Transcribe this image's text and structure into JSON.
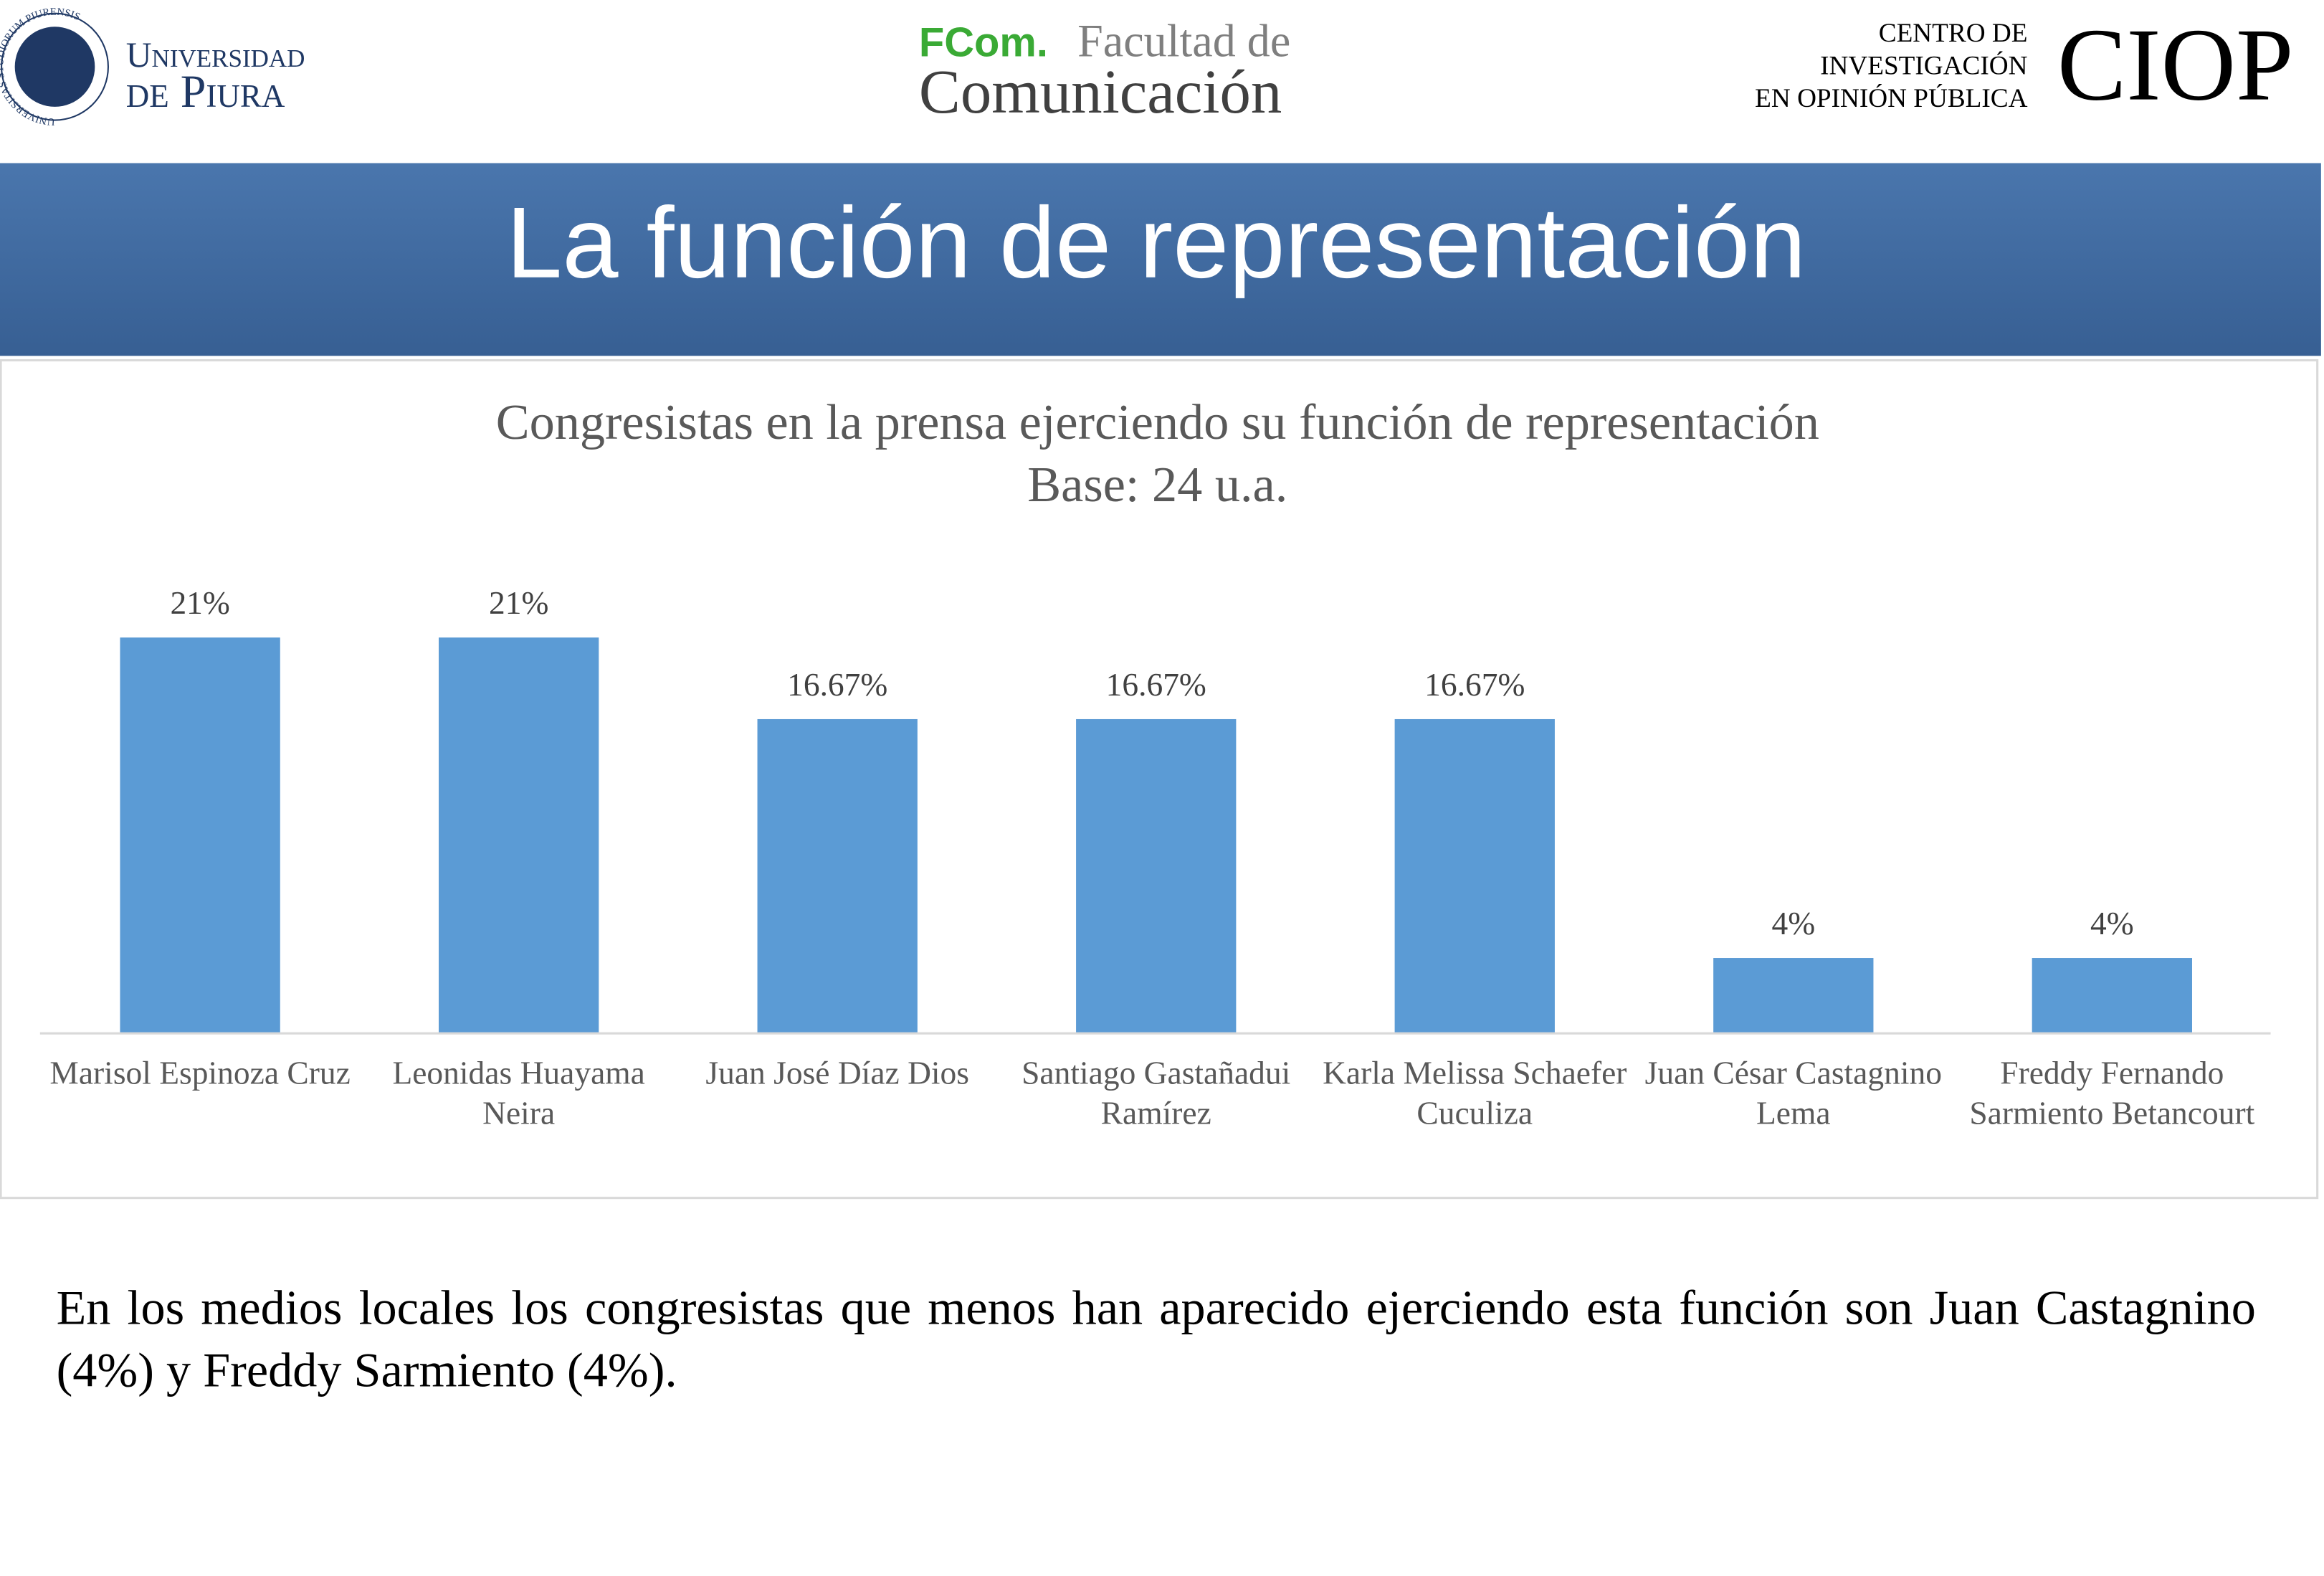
{
  "header": {
    "seal_text": "UNIVERSITAS STUDIORUM PIURENSIS",
    "university_line1": "Universidad",
    "university_line2": "de Piura",
    "faculty_short": "FCom.",
    "faculty_line1": "Facultad de",
    "faculty_line2": "Comunicación",
    "center_lines": [
      "CENTRO DE",
      "INVESTIGACIÓN",
      "EN OPINIÓN PÚBLICA"
    ],
    "center_short": "CIOP"
  },
  "banner": {
    "title": "La función de representación"
  },
  "chart_data": {
    "type": "bar",
    "title": "Congresistas en la prensa ejerciendo su función de representación",
    "subtitle": "Base: 24 u.a.",
    "categories": [
      "Marisol Espinoza Cruz",
      "Leonidas Huayama Neira",
      "Juan José Díaz Dios",
      "Santiago Gastañadui Ramírez",
      "Karla Melissa Schaefer Cuculiza",
      "Juan César Castagnino Lema",
      "Freddy Fernando Sarmiento Betancourt"
    ],
    "values": [
      21,
      21,
      16.67,
      16.67,
      16.67,
      4,
      4
    ],
    "value_labels": [
      "21%",
      "21%",
      "16.67%",
      "16.67%",
      "16.67%",
      "4%",
      "4%"
    ],
    "color": "#5b9bd5"
  },
  "paragraph": "En los medios locales los congresistas que menos han aparecido ejerciendo esta función son Juan Castagnino (4%) y Freddy Sarmiento (4%)."
}
